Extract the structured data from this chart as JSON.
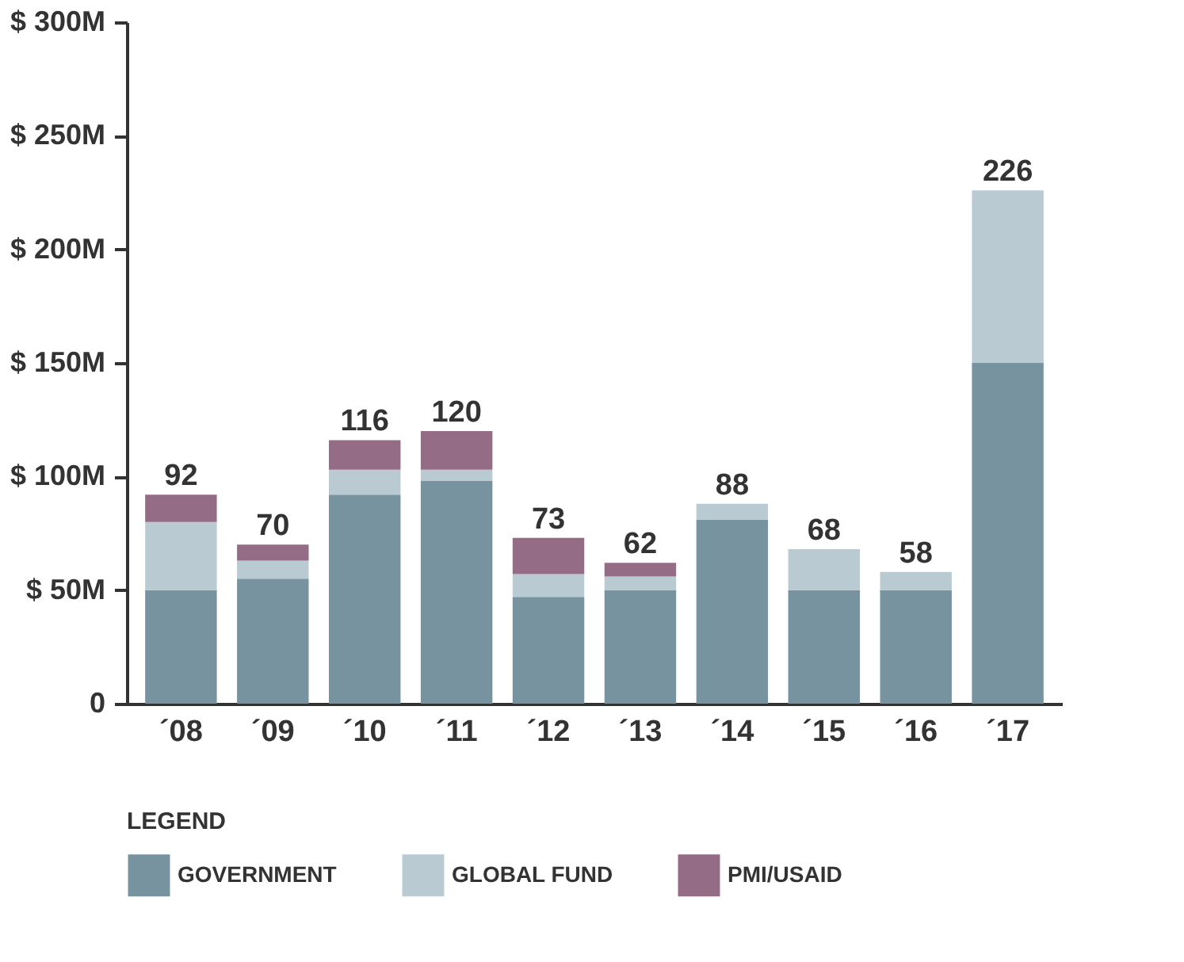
{
  "chart_data": {
    "type": "bar",
    "stacked": true,
    "legend_title": "LEGEND",
    "legend": "bottom",
    "grid": false,
    "categories": [
      "´08",
      "´09",
      "´10",
      "´11",
      "´12",
      "´13",
      "´14",
      "´15",
      "´16",
      "´17"
    ],
    "series": [
      {
        "name": "GOVERNMENT",
        "color": "#76939f",
        "values": [
          50,
          55,
          92,
          98,
          47,
          50,
          81,
          50,
          50,
          150
        ]
      },
      {
        "name": "GLOBAL FUND",
        "color": "#b9cad3",
        "values": [
          30,
          8,
          11,
          5,
          10,
          6,
          7,
          18,
          8,
          76
        ]
      },
      {
        "name": "PMI/USAID",
        "color": "#946c86",
        "values": [
          12,
          7,
          13,
          17,
          16,
          6,
          null,
          null,
          null,
          null
        ]
      }
    ],
    "totals": [
      "92",
      "70",
      "116",
      "120",
      "73",
      "62",
      "88",
      "68",
      "58",
      "226"
    ],
    "ylim": [
      0,
      300
    ],
    "yticks": [
      0,
      {
        "value": 50,
        "label": "$ 50M"
      },
      {
        "value": 100,
        "label": "$ 100M"
      },
      {
        "value": 150,
        "label": "$ 150M"
      },
      {
        "value": 200,
        "label": "$ 200M"
      },
      {
        "value": 250,
        "label": "$ 250M"
      },
      {
        "value": 300,
        "label": "$ 300M"
      }
    ]
  }
}
